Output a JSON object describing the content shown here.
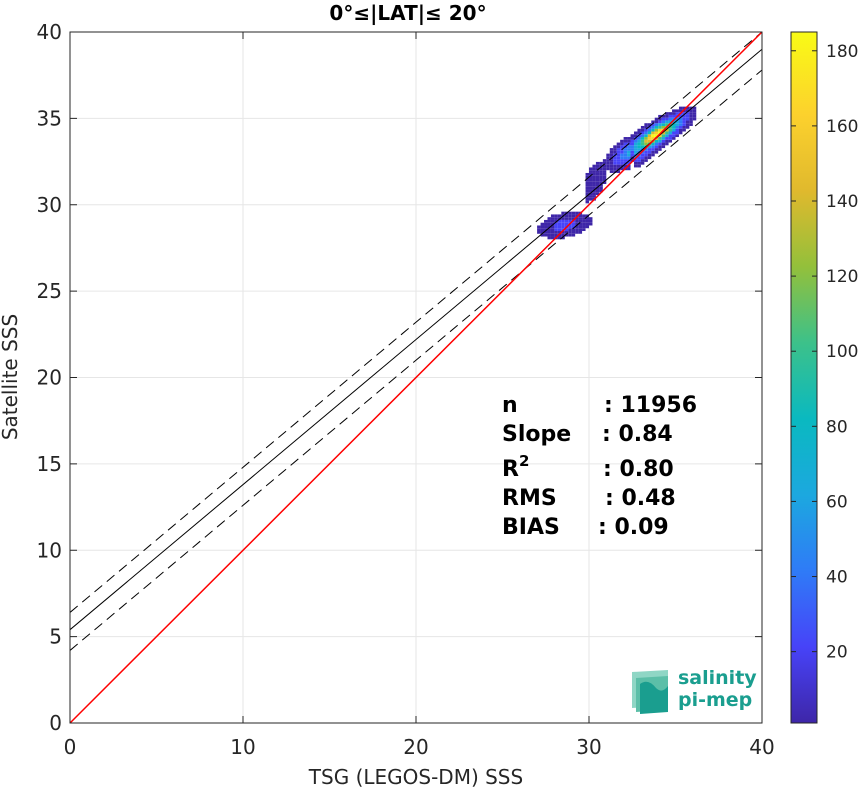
{
  "chart_data": {
    "type": "heatmap",
    "title": "0°≤|LAT|≤ 20°",
    "xlabel": "TSG (LEGOS-DM) SSS",
    "ylabel": "Satellite SSS",
    "xlim": [
      0,
      40
    ],
    "ylim": [
      0,
      40
    ],
    "xticks": [
      "0",
      "10",
      "20",
      "30",
      "40"
    ],
    "yticks": [
      "0",
      "5",
      "10",
      "15",
      "20",
      "25",
      "30",
      "35",
      "40"
    ],
    "grid": true,
    "colorbar": {
      "range": [
        1,
        185
      ],
      "ticks": [
        "20",
        "40",
        "60",
        "80",
        "100",
        "120",
        "140",
        "160",
        "180"
      ],
      "colors": [
        "#3e26a8",
        "#4743f8",
        "#2f7bf7",
        "#1ca8df",
        "#0ab9c0",
        "#3cc18a",
        "#93c03b",
        "#e0b92d",
        "#fcd12d",
        "#f9fb15"
      ]
    },
    "lines": {
      "one_to_one": {
        "slope": 1.0,
        "intercept": 0.0,
        "color": "#ff0000"
      },
      "regression": {
        "slope": 0.84,
        "intercept": 5.4,
        "color": "#000000"
      },
      "upper_bound": {
        "slope": 0.84,
        "intercept": 6.4,
        "style": "dashed"
      },
      "lower_bound": {
        "slope": 0.84,
        "intercept": 4.2,
        "style": "dashed"
      }
    },
    "clusters": [
      {
        "x": 33.8,
        "y": 34.0,
        "peak": 185,
        "sx": 0.8,
        "sy": 0.55,
        "rho": 0.82
      },
      {
        "x": 32.5,
        "y": 33.0,
        "peak": 60,
        "sx": 0.6,
        "sy": 0.45,
        "rho": 0.6
      },
      {
        "x": 28.5,
        "y": 28.7,
        "peak": 18,
        "sx": 0.7,
        "sy": 0.35,
        "rho": 0.3
      },
      {
        "x": 30.3,
        "y": 31.2,
        "peak": 10,
        "sx": 0.4,
        "sy": 0.6,
        "rho": 0.5
      }
    ],
    "stats": [
      {
        "label": "n",
        "sup": "",
        "value": ": 11956"
      },
      {
        "label": "Slope",
        "sup": "",
        "value": ": 0.84"
      },
      {
        "label": "R",
        "sup": "2",
        "value": ": 0.80"
      },
      {
        "label": "RMS",
        "sup": "",
        "value": ": 0.48"
      },
      {
        "label": "BIAS",
        "sup": "",
        "value": ": 0.09"
      }
    ]
  },
  "logo": {
    "line1": "salinity",
    "line2": "pi-mep"
  }
}
